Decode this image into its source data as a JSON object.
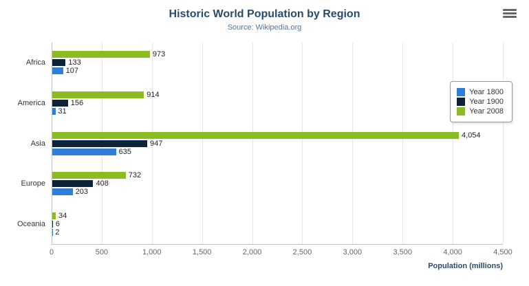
{
  "header": {
    "title": "Historic World Population by Region",
    "subtitle": "Source: Wikipedia.org"
  },
  "toolbar": {
    "menu_icon": "hamburger-icon"
  },
  "chart_data": {
    "type": "bar",
    "title": "Historic World Population by Region",
    "subtitle": "Source: Wikipedia.org",
    "categories": [
      "Africa",
      "America",
      "Asia",
      "Europe",
      "Oceania"
    ],
    "series": [
      {
        "name": "Year 1800",
        "color": "#2f7ed8",
        "values": [
          107,
          31,
          635,
          203,
          2
        ]
      },
      {
        "name": "Year 1900",
        "color": "#0d233a",
        "values": [
          133,
          156,
          947,
          408,
          6
        ]
      },
      {
        "name": "Year 2008",
        "color": "#8bbc21",
        "values": [
          973,
          914,
          4054,
          732,
          34
        ]
      }
    ],
    "series_display_order": [
      "Year 2008",
      "Year 1900",
      "Year 1800"
    ],
    "xlabel": "Population (millions)",
    "ylabel": "",
    "xlim": [
      0,
      4500
    ],
    "x_tick_step": 500,
    "x_tick_labels": [
      "0",
      "500",
      "1,000",
      "1,500",
      "2,000",
      "2,500",
      "3,000",
      "3,500",
      "4,000",
      "4,500"
    ],
    "grid": true,
    "legend_position": "right",
    "data_labels": true
  },
  "colors": {
    "title": "#274b6d",
    "subtitle": "#4d759e",
    "gridline": "#e6e6e6",
    "axis_line": "#c0c0c0",
    "tick_text": "#666666",
    "category_text": "#333333",
    "data_label_text": "#222222"
  }
}
